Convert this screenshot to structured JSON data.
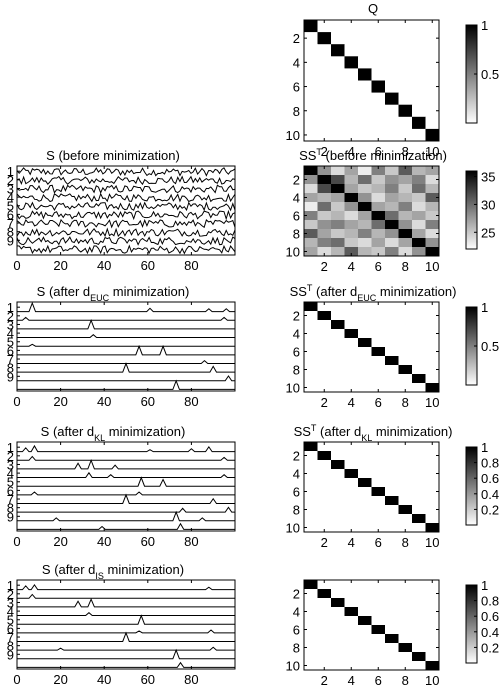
{
  "top_panel": {
    "title": "Q",
    "chart_data": {
      "type": "heatmap",
      "matrix": "identity",
      "size": 10,
      "tick_labels": [
        "2",
        "4",
        "6",
        "8",
        "10"
      ],
      "colorbar_ticks": [
        "1",
        "0.5"
      ],
      "clim": [
        0,
        1
      ]
    }
  },
  "rows": [
    {
      "left": {
        "title_parts": [
          {
            "t": "S (before minimization)",
            "sub": false
          }
        ],
        "chart_data": {
          "type": "line",
          "kind": "noise",
          "n_series": 10,
          "points_per_series": 100,
          "xlim": [
            0,
            100
          ],
          "xticks": [
            "0",
            "20",
            "40",
            "60",
            "80"
          ],
          "yticks": [
            "1",
            "2",
            "3",
            "4",
            "5",
            "6",
            "7",
            "8",
            "9"
          ]
        }
      },
      "right": {
        "title_parts": [
          {
            "t": "SS",
            "sub": false
          },
          {
            "t": "T",
            "sup": true
          },
          {
            "t": " (before minimization)",
            "sub": false
          }
        ],
        "chart_data": {
          "type": "heatmap",
          "matrix": "noisy",
          "size": 10,
          "tick_labels": [
            "2",
            "4",
            "6",
            "8",
            "10"
          ],
          "colorbar_ticks": [
            "35",
            "30",
            "25"
          ],
          "clim": [
            22,
            36
          ],
          "diagonal_value": 36,
          "offdiag_values": [
            [
              0,
              1,
              28
            ],
            [
              0,
              2,
              24
            ],
            [
              0,
              3,
              27
            ],
            [
              0,
              4,
              23
            ],
            [
              0,
              5,
              29
            ],
            [
              0,
              6,
              25
            ],
            [
              0,
              7,
              31
            ],
            [
              0,
              8,
              26
            ],
            [
              0,
              9,
              27
            ],
            [
              1,
              2,
              32
            ],
            [
              1,
              3,
              26
            ],
            [
              1,
              4,
              30
            ],
            [
              1,
              5,
              25
            ],
            [
              1,
              6,
              28
            ],
            [
              1,
              7,
              27
            ],
            [
              1,
              8,
              29
            ],
            [
              1,
              9,
              24
            ],
            [
              2,
              3,
              27
            ],
            [
              2,
              4,
              25
            ],
            [
              2,
              5,
              26
            ],
            [
              2,
              6,
              29
            ],
            [
              2,
              7,
              25
            ],
            [
              2,
              8,
              30
            ],
            [
              2,
              9,
              26
            ],
            [
              3,
              4,
              28
            ],
            [
              3,
              5,
              24
            ],
            [
              3,
              6,
              27
            ],
            [
              3,
              7,
              26
            ],
            [
              3,
              8,
              25
            ],
            [
              3,
              9,
              31
            ],
            [
              4,
              5,
              27
            ],
            [
              4,
              6,
              26
            ],
            [
              4,
              7,
              29
            ],
            [
              4,
              8,
              24
            ],
            [
              4,
              9,
              26
            ],
            [
              5,
              6,
              30
            ],
            [
              5,
              7,
              26
            ],
            [
              5,
              8,
              27
            ],
            [
              5,
              9,
              25
            ],
            [
              6,
              7,
              28
            ],
            [
              6,
              8,
              24
            ],
            [
              6,
              9,
              29
            ],
            [
              7,
              8,
              27
            ],
            [
              7,
              9,
              24
            ],
            [
              8,
              9,
              28
            ]
          ]
        }
      }
    },
    {
      "left": {
        "title_parts": [
          {
            "t": "S (after d",
            "sub": false
          },
          {
            "t": "EUC",
            "sub": true
          },
          {
            "t": " minimization)",
            "sub": false
          }
        ],
        "chart_data": {
          "type": "line",
          "kind": "spikes",
          "n_series": 10,
          "xlim": [
            0,
            100
          ],
          "xticks": [
            "0",
            "20",
            "40",
            "60",
            "80"
          ],
          "yticks": [
            "1",
            "2",
            "3",
            "4",
            "5",
            "6",
            "7",
            "8",
            "9"
          ],
          "spikes": [
            [
              [
                7,
                0.9
              ],
              [
                61,
                0.35
              ],
              [
                88,
                0.3
              ],
              [
                96,
                0.3
              ]
            ],
            [
              [
                4,
                0.3
              ],
              [
                95,
                0.3
              ]
            ],
            [
              [
                34,
                0.9
              ]
            ],
            [
              [
                35,
                0.3
              ]
            ],
            [
              [
                7,
                0.2
              ]
            ],
            [
              [
                56,
                0.9
              ],
              [
                67,
                0.9
              ]
            ],
            [
              [
                86,
                0.3
              ]
            ],
            [
              [
                50,
                0.9
              ],
              [
                90,
                0.6
              ]
            ],
            [
              [
                97,
                0.5
              ]
            ],
            [
              [
                73,
                0.9
              ]
            ]
          ]
        }
      },
      "right": {
        "title_parts": [
          {
            "t": "SS",
            "sub": false
          },
          {
            "t": "T",
            "sup": true
          },
          {
            "t": " (after d",
            "sub": false
          },
          {
            "t": "EUC",
            "sub": true
          },
          {
            "t": " minimization)",
            "sub": false
          }
        ],
        "chart_data": {
          "type": "heatmap",
          "matrix": "identity",
          "size": 10,
          "tick_labels": [
            "2",
            "4",
            "6",
            "8",
            "10"
          ],
          "colorbar_ticks": [
            "1",
            "0.5"
          ],
          "clim": [
            0,
            1
          ]
        }
      }
    },
    {
      "left": {
        "title_parts": [
          {
            "t": "S (after d",
            "sub": false
          },
          {
            "t": "KL",
            "sub": true
          },
          {
            "t": " minimization)",
            "sub": false
          }
        ],
        "chart_data": {
          "type": "line",
          "kind": "spikes",
          "n_series": 10,
          "xlim": [
            0,
            100
          ],
          "xticks": [
            "0",
            "20",
            "40",
            "60",
            "80"
          ],
          "yticks": [
            "1",
            "2",
            "3",
            "4",
            "5",
            "6",
            "7",
            "8",
            "9"
          ],
          "spikes": [
            [
              [
                4,
                0.4
              ],
              [
                8,
                0.6
              ],
              [
                61,
                0.2
              ],
              [
                80,
                0.3
              ],
              [
                88,
                0.5
              ]
            ],
            [
              [
                7,
                0.4
              ],
              [
                95,
                0.3
              ]
            ],
            [
              [
                28,
                0.6
              ],
              [
                34,
                0.9
              ],
              [
                45,
                0.4
              ]
            ],
            [
              [
                33,
                0.5
              ],
              [
                43,
                0.3
              ],
              [
                95,
                0.3
              ]
            ],
            [
              [
                57,
                0.9
              ],
              [
                67,
                0.7
              ]
            ],
            [
              [
                8,
                0.3
              ],
              [
                56,
                0.3
              ]
            ],
            [
              [
                50,
                0.9
              ],
              [
                90,
                0.5
              ]
            ],
            [
              [
                76,
                0.4
              ],
              [
                97,
                0.5
              ]
            ],
            [
              [
                18,
                0.3
              ],
              [
                73,
                0.9
              ],
              [
                85,
                0.3
              ]
            ],
            [
              [
                39,
                0.3
              ],
              [
                75,
                0.6
              ]
            ]
          ]
        }
      },
      "right": {
        "title_parts": [
          {
            "t": "SS",
            "sub": false
          },
          {
            "t": "T",
            "sup": true
          },
          {
            "t": " (after d",
            "sub": false
          },
          {
            "t": "KL",
            "sub": true
          },
          {
            "t": " minimization)",
            "sub": false
          }
        ],
        "chart_data": {
          "type": "heatmap",
          "matrix": "identity",
          "size": 10,
          "tick_labels": [
            "2",
            "4",
            "6",
            "8",
            "10"
          ],
          "colorbar_ticks": [
            "1",
            "0.8",
            "0.6",
            "0.4",
            "0.2"
          ],
          "clim": [
            0,
            1
          ]
        }
      }
    },
    {
      "left": {
        "title_parts": [
          {
            "t": "S (after d",
            "sub": false
          },
          {
            "t": "IS",
            "sub": true
          },
          {
            "t": " minimization)",
            "sub": false
          }
        ],
        "chart_data": {
          "type": "line",
          "kind": "spikes",
          "n_series": 10,
          "xlim": [
            0,
            100
          ],
          "xticks": [
            "0",
            "20",
            "40",
            "60",
            "80"
          ],
          "yticks": [
            "1",
            "2",
            "3",
            "4",
            "5",
            "6",
            "7",
            "8",
            "9"
          ],
          "spikes": [
            [
              [
                4,
                0.4
              ],
              [
                8,
                0.5
              ],
              [
                88,
                0.25
              ]
            ],
            [
              [
                7,
                0.4
              ]
            ],
            [
              [
                28,
                0.6
              ],
              [
                34,
                0.8
              ]
            ],
            [
              [
                33,
                0.3
              ]
            ],
            [
              [
                57,
                0.9
              ]
            ],
            [
              [
                56,
                0.2
              ],
              [
                89,
                0.3
              ]
            ],
            [
              [
                50,
                0.9
              ]
            ],
            [
              [
                20,
                0.2
              ],
              [
                90,
                0.3
              ]
            ],
            [
              [
                73,
                0.9
              ]
            ],
            [
              [
                75,
                0.5
              ]
            ]
          ]
        }
      },
      "right": {
        "title_parts": [],
        "chart_data": {
          "type": "heatmap",
          "matrix": "identity",
          "size": 10,
          "tick_labels": [
            "2",
            "4",
            "6",
            "8",
            "10"
          ],
          "colorbar_ticks": [
            "1",
            "0.8",
            "0.6",
            "0.4",
            "0.2"
          ],
          "clim": [
            0,
            1
          ]
        }
      }
    }
  ]
}
